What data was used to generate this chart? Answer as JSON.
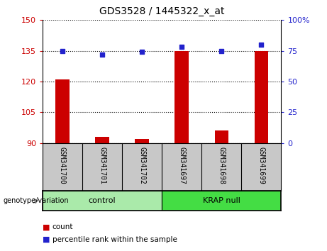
{
  "title": "GDS3528 / 1445322_x_at",
  "samples": [
    "GSM341700",
    "GSM341701",
    "GSM341702",
    "GSM341697",
    "GSM341698",
    "GSM341699"
  ],
  "group_labels": [
    "control",
    "KRAP null"
  ],
  "bar_values": [
    121,
    93,
    92,
    135,
    96,
    135
  ],
  "dot_values": [
    75,
    72,
    74,
    78,
    75,
    80
  ],
  "ylim_left": [
    90,
    150
  ],
  "ylim_right": [
    0,
    100
  ],
  "yticks_left": [
    90,
    105,
    120,
    135,
    150
  ],
  "yticks_right": [
    0,
    25,
    50,
    75,
    100
  ],
  "bar_color": "#CC0000",
  "dot_color": "#2222CC",
  "bg_color": "#FFFFFF",
  "sample_panel_color": "#C8C8C8",
  "ctrl_color": "#AAEAAA",
  "krap_color": "#44DD44",
  "genotype_label": "genotype/variation"
}
